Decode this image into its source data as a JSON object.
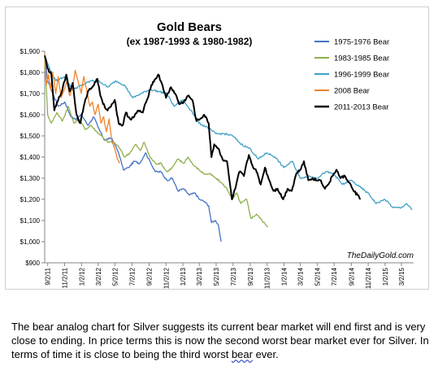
{
  "chart_data": {
    "type": "line",
    "title": "Gold Bears",
    "subtitle": "(ex 1987-1993 & 1980-1982)",
    "watermark": "TheDailyGold.com",
    "ylim": [
      900,
      1900
    ],
    "y_ticks": [
      900,
      1000,
      1100,
      1200,
      1300,
      1400,
      1500,
      1600,
      1700,
      1800,
      1900
    ],
    "y_tick_labels": [
      "$900",
      "$1,000",
      "$1,100",
      "$1,200",
      "$1,300",
      "$1,400",
      "$1,500",
      "$1,600",
      "$1,700",
      "$1,800",
      "$1,900"
    ],
    "x_range": [
      "2011-08-22",
      "2015-04-15"
    ],
    "x_ticks": [
      "2011-09-02",
      "2011-11-02",
      "2012-01-02",
      "2012-03-02",
      "2012-05-02",
      "2012-07-02",
      "2012-09-02",
      "2012-11-02",
      "2013-01-02",
      "2013-03-02",
      "2013-05-02",
      "2013-07-02",
      "2013-09-02",
      "2013-11-02",
      "2014-01-02",
      "2014-03-02",
      "2014-05-02",
      "2014-07-02",
      "2014-09-02",
      "2014-11-02",
      "2015-01-02",
      "2015-03-02"
    ],
    "x_tick_labels": [
      "9/2/11",
      "11/2/11",
      "1/2/12",
      "3/2/12",
      "5/2/12",
      "7/2/12",
      "9/2/12",
      "11/2/12",
      "1/2/13",
      "3/2/13",
      "5/2/13",
      "7/2/13",
      "9/2/13",
      "11/2/13",
      "1/2/14",
      "3/2/14",
      "5/2/14",
      "7/2/14",
      "9/2/14",
      "11/2/14",
      "1/2/15",
      "3/2/15"
    ],
    "legend_position": "top-right",
    "grid": false,
    "series": [
      {
        "name": "1975-1976 Bear",
        "color": "#4472c4",
        "points": [
          [
            "2011-08-22",
            1880
          ],
          [
            "2011-09-02",
            1760
          ],
          [
            "2011-09-20",
            1700
          ],
          [
            "2011-10-10",
            1640
          ],
          [
            "2011-11-02",
            1660
          ],
          [
            "2011-11-25",
            1590
          ],
          [
            "2011-12-15",
            1580
          ],
          [
            "2012-01-02",
            1600
          ],
          [
            "2012-01-25",
            1550
          ],
          [
            "2012-02-15",
            1590
          ],
          [
            "2012-03-02",
            1540
          ],
          [
            "2012-03-25",
            1480
          ],
          [
            "2012-04-20",
            1490
          ],
          [
            "2012-05-15",
            1420
          ],
          [
            "2012-06-01",
            1340
          ],
          [
            "2012-06-20",
            1350
          ],
          [
            "2012-07-10",
            1380
          ],
          [
            "2012-07-30",
            1370
          ],
          [
            "2012-08-20",
            1420
          ],
          [
            "2012-09-05",
            1380
          ],
          [
            "2012-09-25",
            1330
          ],
          [
            "2012-10-15",
            1330
          ],
          [
            "2012-11-05",
            1290
          ],
          [
            "2012-11-25",
            1300
          ],
          [
            "2012-12-15",
            1240
          ],
          [
            "2013-01-05",
            1250
          ],
          [
            "2013-01-25",
            1220
          ],
          [
            "2013-02-15",
            1230
          ],
          [
            "2013-03-02",
            1200
          ],
          [
            "2013-03-20",
            1190
          ],
          [
            "2013-04-05",
            1170
          ],
          [
            "2013-04-15",
            1090
          ],
          [
            "2013-04-30",
            1100
          ],
          [
            "2013-05-10",
            1080
          ],
          [
            "2013-05-20",
            1000
          ]
        ]
      },
      {
        "name": "1983-1985 Bear",
        "color": "#8db04a",
        "points": [
          [
            "2011-08-22",
            1870
          ],
          [
            "2011-09-02",
            1600
          ],
          [
            "2011-09-15",
            1560
          ],
          [
            "2011-10-05",
            1610
          ],
          [
            "2011-10-25",
            1570
          ],
          [
            "2011-11-15",
            1640
          ],
          [
            "2011-12-05",
            1560
          ],
          [
            "2011-12-25",
            1580
          ],
          [
            "2012-01-15",
            1530
          ],
          [
            "2012-02-05",
            1550
          ],
          [
            "2012-02-25",
            1520
          ],
          [
            "2012-03-15",
            1500
          ],
          [
            "2012-04-05",
            1470
          ],
          [
            "2012-04-25",
            1470
          ],
          [
            "2012-05-15",
            1450
          ],
          [
            "2012-06-05",
            1400
          ],
          [
            "2012-06-25",
            1420
          ],
          [
            "2012-07-15",
            1460
          ],
          [
            "2012-08-01",
            1430
          ],
          [
            "2012-08-15",
            1470
          ],
          [
            "2012-09-05",
            1400
          ],
          [
            "2012-09-25",
            1370
          ],
          [
            "2012-10-15",
            1370
          ],
          [
            "2012-11-05",
            1330
          ],
          [
            "2012-11-25",
            1350
          ],
          [
            "2012-12-15",
            1390
          ],
          [
            "2013-01-05",
            1370
          ],
          [
            "2013-01-20",
            1400
          ],
          [
            "2013-02-10",
            1360
          ],
          [
            "2013-03-01",
            1340
          ],
          [
            "2013-03-20",
            1320
          ],
          [
            "2013-04-10",
            1320
          ],
          [
            "2013-04-30",
            1300
          ],
          [
            "2013-05-20",
            1280
          ],
          [
            "2013-06-10",
            1250
          ],
          [
            "2013-06-30",
            1200
          ],
          [
            "2013-07-15",
            1230
          ],
          [
            "2013-07-30",
            1180
          ],
          [
            "2013-08-20",
            1200
          ],
          [
            "2013-09-05",
            1110
          ],
          [
            "2013-09-25",
            1130
          ],
          [
            "2013-10-15",
            1100
          ],
          [
            "2013-11-05",
            1070
          ]
        ]
      },
      {
        "name": "1996-1999 Bear",
        "color": "#3f9fc7",
        "points": [
          [
            "2011-08-22",
            1880
          ],
          [
            "2011-09-05",
            1830
          ],
          [
            "2011-10-01",
            1760
          ],
          [
            "2011-11-01",
            1780
          ],
          [
            "2011-12-01",
            1720
          ],
          [
            "2012-01-05",
            1740
          ],
          [
            "2012-02-05",
            1760
          ],
          [
            "2012-03-05",
            1760
          ],
          [
            "2012-04-05",
            1730
          ],
          [
            "2012-05-05",
            1760
          ],
          [
            "2012-06-05",
            1740
          ],
          [
            "2012-07-05",
            1680
          ],
          [
            "2012-08-05",
            1700
          ],
          [
            "2012-09-05",
            1720
          ],
          [
            "2012-10-05",
            1710
          ],
          [
            "2012-11-05",
            1700
          ],
          [
            "2012-12-01",
            1640
          ],
          [
            "2013-01-01",
            1670
          ],
          [
            "2013-02-01",
            1620
          ],
          [
            "2013-03-01",
            1560
          ],
          [
            "2013-04-01",
            1540
          ],
          [
            "2013-05-01",
            1510
          ],
          [
            "2013-06-01",
            1510
          ],
          [
            "2013-07-01",
            1500
          ],
          [
            "2013-08-01",
            1460
          ],
          [
            "2013-09-01",
            1440
          ],
          [
            "2013-10-01",
            1390
          ],
          [
            "2013-11-01",
            1420
          ],
          [
            "2013-12-01",
            1400
          ],
          [
            "2014-01-01",
            1350
          ],
          [
            "2014-02-01",
            1380
          ],
          [
            "2014-03-01",
            1300
          ],
          [
            "2014-04-01",
            1310
          ],
          [
            "2014-05-01",
            1300
          ],
          [
            "2014-06-01",
            1330
          ],
          [
            "2014-07-01",
            1320
          ],
          [
            "2014-08-01",
            1270
          ],
          [
            "2014-09-01",
            1290
          ],
          [
            "2014-10-01",
            1260
          ],
          [
            "2014-11-01",
            1230
          ],
          [
            "2014-12-01",
            1180
          ],
          [
            "2015-01-01",
            1200
          ],
          [
            "2015-02-01",
            1160
          ],
          [
            "2015-03-01",
            1160
          ],
          [
            "2015-03-20",
            1180
          ],
          [
            "2015-04-10",
            1150
          ]
        ]
      },
      {
        "name": "2008 Bear",
        "color": "#f0842c",
        "points": [
          [
            "2011-08-22",
            1890
          ],
          [
            "2011-08-28",
            1740
          ],
          [
            "2011-09-05",
            1790
          ],
          [
            "2011-09-12",
            1720
          ],
          [
            "2011-09-20",
            1800
          ],
          [
            "2011-10-01",
            1700
          ],
          [
            "2011-10-10",
            1780
          ],
          [
            "2011-10-20",
            1680
          ],
          [
            "2011-11-01",
            1720
          ],
          [
            "2011-11-10",
            1760
          ],
          [
            "2011-11-20",
            1690
          ],
          [
            "2011-12-01",
            1730
          ],
          [
            "2011-12-10",
            1810
          ],
          [
            "2011-12-20",
            1760
          ],
          [
            "2012-01-01",
            1700
          ],
          [
            "2012-01-10",
            1780
          ],
          [
            "2012-01-20",
            1720
          ],
          [
            "2012-02-01",
            1640
          ],
          [
            "2012-02-10",
            1660
          ],
          [
            "2012-02-20",
            1600
          ],
          [
            "2012-03-02",
            1650
          ],
          [
            "2012-03-12",
            1560
          ],
          [
            "2012-03-22",
            1590
          ],
          [
            "2012-04-01",
            1520
          ],
          [
            "2012-04-10",
            1580
          ],
          [
            "2012-04-20",
            1480
          ],
          [
            "2012-05-01",
            1440
          ],
          [
            "2012-05-10",
            1390
          ],
          [
            "2012-05-18",
            1370
          ]
        ]
      },
      {
        "name": "2011-2013 Bear",
        "color": "#000000",
        "points": [
          [
            "2011-08-22",
            1880
          ],
          [
            "2011-09-01",
            1820
          ],
          [
            "2011-09-15",
            1790
          ],
          [
            "2011-09-26",
            1620
          ],
          [
            "2011-10-10",
            1670
          ],
          [
            "2011-10-25",
            1720
          ],
          [
            "2011-11-08",
            1790
          ],
          [
            "2011-11-20",
            1710
          ],
          [
            "2011-12-01",
            1750
          ],
          [
            "2011-12-15",
            1600
          ],
          [
            "2011-12-29",
            1560
          ],
          [
            "2012-01-10",
            1640
          ],
          [
            "2012-01-25",
            1710
          ],
          [
            "2012-02-10",
            1730
          ],
          [
            "2012-02-28",
            1770
          ],
          [
            "2012-03-10",
            1690
          ],
          [
            "2012-03-20",
            1650
          ],
          [
            "2012-04-05",
            1620
          ],
          [
            "2012-04-20",
            1650
          ],
          [
            "2012-05-01",
            1670
          ],
          [
            "2012-05-15",
            1560
          ],
          [
            "2012-05-30",
            1550
          ],
          [
            "2012-06-10",
            1610
          ],
          [
            "2012-06-25",
            1580
          ],
          [
            "2012-07-10",
            1590
          ],
          [
            "2012-07-25",
            1620
          ],
          [
            "2012-08-10",
            1610
          ],
          [
            "2012-08-25",
            1670
          ],
          [
            "2012-09-10",
            1740
          ],
          [
            "2012-09-25",
            1770
          ],
          [
            "2012-10-05",
            1790
          ],
          [
            "2012-10-20",
            1740
          ],
          [
            "2012-11-02",
            1680
          ],
          [
            "2012-11-20",
            1730
          ],
          [
            "2012-12-05",
            1700
          ],
          [
            "2012-12-20",
            1650
          ],
          [
            "2013-01-05",
            1660
          ],
          [
            "2013-01-20",
            1690
          ],
          [
            "2013-02-05",
            1670
          ],
          [
            "2013-02-20",
            1570
          ],
          [
            "2013-03-05",
            1580
          ],
          [
            "2013-03-20",
            1600
          ],
          [
            "2013-04-05",
            1560
          ],
          [
            "2013-04-15",
            1400
          ],
          [
            "2013-04-25",
            1460
          ],
          [
            "2013-05-10",
            1440
          ],
          [
            "2013-05-25",
            1390
          ],
          [
            "2013-06-10",
            1380
          ],
          [
            "2013-06-28",
            1200
          ],
          [
            "2013-07-10",
            1250
          ],
          [
            "2013-07-25",
            1330
          ],
          [
            "2013-08-10",
            1310
          ],
          [
            "2013-08-28",
            1410
          ],
          [
            "2013-09-10",
            1360
          ],
          [
            "2013-09-25",
            1330
          ],
          [
            "2013-10-10",
            1270
          ],
          [
            "2013-10-25",
            1350
          ],
          [
            "2013-11-10",
            1290
          ],
          [
            "2013-11-25",
            1240
          ],
          [
            "2013-12-10",
            1250
          ],
          [
            "2013-12-30",
            1200
          ],
          [
            "2014-01-15",
            1250
          ],
          [
            "2014-01-30",
            1240
          ],
          [
            "2014-02-15",
            1320
          ],
          [
            "2014-03-01",
            1340
          ],
          [
            "2014-03-15",
            1380
          ],
          [
            "2014-03-31",
            1290
          ],
          [
            "2014-04-15",
            1300
          ],
          [
            "2014-04-30",
            1290
          ],
          [
            "2014-05-15",
            1290
          ],
          [
            "2014-05-30",
            1250
          ],
          [
            "2014-06-15",
            1280
          ],
          [
            "2014-06-30",
            1320
          ],
          [
            "2014-07-10",
            1340
          ],
          [
            "2014-07-25",
            1300
          ],
          [
            "2014-08-10",
            1310
          ],
          [
            "2014-08-25",
            1280
          ],
          [
            "2014-09-10",
            1240
          ],
          [
            "2014-09-25",
            1220
          ],
          [
            "2014-10-05",
            1200
          ]
        ]
      }
    ]
  },
  "caption": {
    "text_before": "The bear analog chart for Silver suggests its current bear market will end first and is very close to  ending. In price terms this is now the second worst bear market ever for Silver. In terms of time it is close to being the third worst ",
    "underlined_word": "bear",
    "text_after": " ever."
  }
}
